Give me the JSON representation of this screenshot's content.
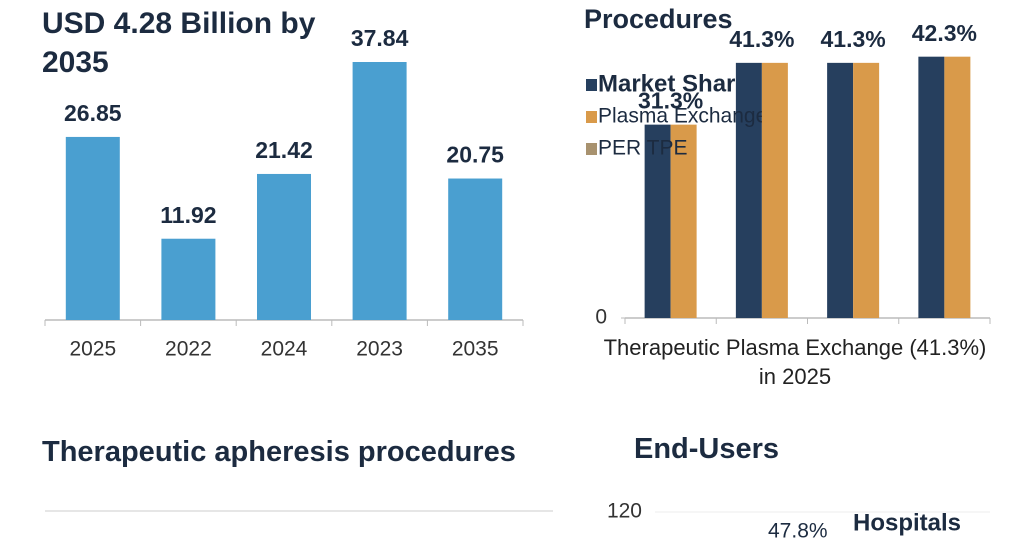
{
  "chart_data": [
    {
      "type": "bar",
      "title": "USD 4.28 Billion by 2035",
      "categories": [
        "2025",
        "2022",
        "2024",
        "2023",
        "2035"
      ],
      "values": [
        26.85,
        11.92,
        21.42,
        37.84,
        20.75
      ],
      "color": "#4a9fd0"
    },
    {
      "type": "grouped-bar",
      "title": "Procedures",
      "categories": [
        null,
        null,
        null,
        null
      ],
      "series": [
        {
          "name": "Market Share",
          "color": "#263f5e",
          "values": [
            31.3,
            41.3,
            41.3,
            42.3
          ],
          "value_labels": [
            "31.3%",
            "41.3%",
            "41.3%",
            "42.3%"
          ]
        },
        {
          "name": "Plasma Exchange",
          "color": "#d99a4a",
          "values": [
            31.3,
            41.3,
            41.3,
            42.3
          ]
        },
        {
          "name": "PER TPE",
          "color": "#a8926f",
          "values": [
            null,
            null,
            null,
            null
          ]
        }
      ],
      "x_label": "Therapeutic Plasma Exchange (41.3%) in 2025",
      "ylim": [
        0,
        45
      ],
      "yticks": [
        0
      ]
    },
    {
      "type": "bar",
      "title": "Therapeutic apheresis procedures"
    },
    {
      "type": "bar",
      "title": "End-Users",
      "yticks": [
        120
      ],
      "annotations": [
        "47.8%",
        "Hospitals"
      ]
    }
  ]
}
